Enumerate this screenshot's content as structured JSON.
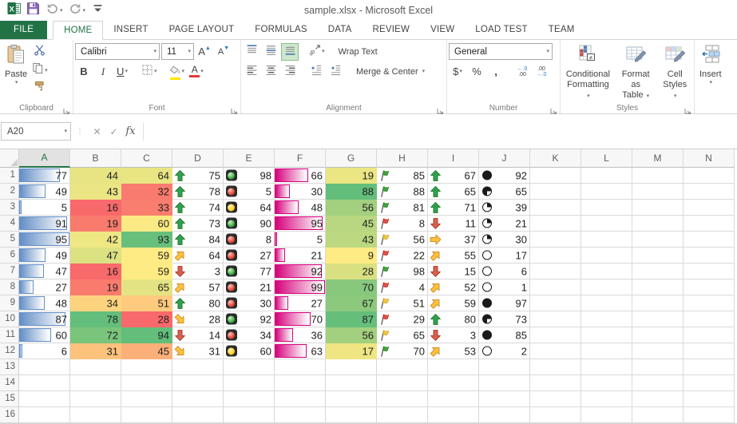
{
  "titlebar": {
    "title": "sample.xlsx - Microsoft Excel"
  },
  "tabs": {
    "file": "FILE",
    "items": [
      {
        "label": "HOME",
        "active": true
      },
      {
        "label": "INSERT"
      },
      {
        "label": "PAGE LAYOUT"
      },
      {
        "label": "FORMULAS"
      },
      {
        "label": "DATA"
      },
      {
        "label": "REVIEW"
      },
      {
        "label": "VIEW"
      },
      {
        "label": "LOAD TEST"
      },
      {
        "label": "TEAM"
      }
    ]
  },
  "ribbon": {
    "clipboard": {
      "label": "Clipboard",
      "paste": "Paste"
    },
    "font": {
      "label": "Font",
      "font_name": "Calibri",
      "font_size": "11"
    },
    "alignment": {
      "label": "Alignment",
      "wrap_text": "Wrap Text",
      "merge_center": "Merge & Center"
    },
    "number": {
      "label": "Number",
      "format": "General"
    },
    "styles": {
      "label": "Styles",
      "conditional_1": "Conditional",
      "conditional_2": "Formatting",
      "format_table_1": "Format as",
      "format_table_2": "Table",
      "cell_styles_1": "Cell",
      "cell_styles_2": "Styles"
    },
    "cells": {
      "insert": "Insert"
    }
  },
  "formula_bar": {
    "name_box": "A20",
    "formula": ""
  },
  "sheet": {
    "columns": [
      "A",
      "B",
      "C",
      "D",
      "E",
      "F",
      "G",
      "H",
      "I",
      "J",
      "K",
      "L",
      "M",
      "N"
    ],
    "selected_column": "A",
    "row_count": 16,
    "bar_colors": {
      "A": "#638EC6",
      "F": "#D6007B"
    },
    "rows": [
      {
        "A": {
          "v": 77,
          "bar": 81
        },
        "B": {
          "v": 44,
          "bg": "#E8E483"
        },
        "C": {
          "v": 64,
          "bg": "#E9E583"
        },
        "D": {
          "v": 75,
          "icon": "arrow-up"
        },
        "E": {
          "v": 98,
          "icon": "light-green"
        },
        "F": {
          "v": 66,
          "bar": 67
        },
        "G": {
          "v": 19,
          "bg": "#EBE583"
        },
        "H": {
          "v": 85,
          "icon": "flag-green"
        },
        "I": {
          "v": 67,
          "icon": "arrow-up"
        },
        "J": {
          "v": 92,
          "icon": "circle-full"
        }
      },
      {
        "A": {
          "v": 49,
          "bar": 52
        },
        "B": {
          "v": 43,
          "bg": "#ECE583"
        },
        "C": {
          "v": 32,
          "bg": "#F97A6E"
        },
        "D": {
          "v": 78,
          "icon": "arrow-up"
        },
        "E": {
          "v": 5,
          "icon": "light-red"
        },
        "F": {
          "v": 30,
          "bar": 30
        },
        "G": {
          "v": 88,
          "bg": "#63BE7B"
        },
        "H": {
          "v": 88,
          "icon": "flag-green"
        },
        "I": {
          "v": 65,
          "icon": "arrow-up"
        },
        "J": {
          "v": 65,
          "icon": "circle-three-quarter"
        }
      },
      {
        "A": {
          "v": 5,
          "bar": 5
        },
        "B": {
          "v": 16,
          "bg": "#F8696B"
        },
        "C": {
          "v": 33,
          "bg": "#F97E6F"
        },
        "D": {
          "v": 74,
          "icon": "arrow-up"
        },
        "E": {
          "v": 64,
          "icon": "light-yellow"
        },
        "F": {
          "v": 48,
          "bar": 48
        },
        "G": {
          "v": 56,
          "bg": "#A2D07F"
        },
        "H": {
          "v": 81,
          "icon": "flag-green"
        },
        "I": {
          "v": 71,
          "icon": "arrow-up"
        },
        "J": {
          "v": 39,
          "icon": "circle-quarter"
        }
      },
      {
        "A": {
          "v": 91,
          "bar": 96
        },
        "B": {
          "v": 19,
          "bg": "#F97B6E"
        },
        "C": {
          "v": 60,
          "bg": "#FBEA84"
        },
        "D": {
          "v": 73,
          "icon": "arrow-up"
        },
        "E": {
          "v": 90,
          "icon": "light-green"
        },
        "F": {
          "v": 95,
          "bar": 96
        },
        "G": {
          "v": 45,
          "bg": "#B8D780"
        },
        "H": {
          "v": 8,
          "icon": "flag-red"
        },
        "I": {
          "v": 11,
          "icon": "arrow-down"
        },
        "J": {
          "v": 21,
          "icon": "circle-quarter"
        }
      },
      {
        "A": {
          "v": 95,
          "bar": 100
        },
        "B": {
          "v": 42,
          "bg": "#EFE783"
        },
        "C": {
          "v": 93,
          "bg": "#68BF7B"
        },
        "D": {
          "v": 84,
          "icon": "arrow-up"
        },
        "E": {
          "v": 8,
          "icon": "light-red"
        },
        "F": {
          "v": 5,
          "bar": 5
        },
        "G": {
          "v": 43,
          "bg": "#BCD880"
        },
        "H": {
          "v": 56,
          "icon": "flag-yellow"
        },
        "I": {
          "v": 37,
          "icon": "arrow-right"
        },
        "J": {
          "v": 30,
          "icon": "circle-quarter"
        }
      },
      {
        "A": {
          "v": 49,
          "bar": 52
        },
        "B": {
          "v": 47,
          "bg": "#DCE182"
        },
        "C": {
          "v": 59,
          "bg": "#FFEB84"
        },
        "D": {
          "v": 64,
          "icon": "arrow-diag-up"
        },
        "E": {
          "v": 27,
          "icon": "light-red"
        },
        "F": {
          "v": 21,
          "bar": 21
        },
        "G": {
          "v": 9,
          "bg": "#FFEB84"
        },
        "H": {
          "v": 22,
          "icon": "flag-red"
        },
        "I": {
          "v": 55,
          "icon": "arrow-diag-up"
        },
        "J": {
          "v": 17,
          "icon": "circle-empty"
        }
      },
      {
        "A": {
          "v": 47,
          "bar": 49
        },
        "B": {
          "v": 16,
          "bg": "#F8696B"
        },
        "C": {
          "v": 59,
          "bg": "#FFEB84"
        },
        "D": {
          "v": 3,
          "icon": "arrow-down"
        },
        "E": {
          "v": 77,
          "icon": "light-green"
        },
        "F": {
          "v": 92,
          "bar": 93
        },
        "G": {
          "v": 28,
          "bg": "#D9E082"
        },
        "H": {
          "v": 98,
          "icon": "flag-green"
        },
        "I": {
          "v": 15,
          "icon": "arrow-down"
        },
        "J": {
          "v": 6,
          "icon": "circle-empty"
        }
      },
      {
        "A": {
          "v": 27,
          "bar": 28
        },
        "B": {
          "v": 19,
          "bg": "#F97B6E"
        },
        "C": {
          "v": 65,
          "bg": "#E4E383"
        },
        "D": {
          "v": 57,
          "icon": "arrow-diag-up"
        },
        "E": {
          "v": 21,
          "icon": "light-red"
        },
        "F": {
          "v": 99,
          "bar": 100
        },
        "G": {
          "v": 70,
          "bg": "#87C87D"
        },
        "H": {
          "v": 4,
          "icon": "flag-red"
        },
        "I": {
          "v": 52,
          "icon": "arrow-diag-up"
        },
        "J": {
          "v": 1,
          "icon": "circle-empty"
        }
      },
      {
        "A": {
          "v": 48,
          "bar": 51
        },
        "B": {
          "v": 34,
          "bg": "#FED37F"
        },
        "C": {
          "v": 51,
          "bg": "#FDCA7E"
        },
        "D": {
          "v": 80,
          "icon": "arrow-up"
        },
        "E": {
          "v": 30,
          "icon": "light-red"
        },
        "F": {
          "v": 27,
          "bar": 27
        },
        "G": {
          "v": 67,
          "bg": "#8CC97D"
        },
        "H": {
          "v": 51,
          "icon": "flag-yellow"
        },
        "I": {
          "v": 59,
          "icon": "arrow-diag-up"
        },
        "J": {
          "v": 97,
          "icon": "circle-full"
        }
      },
      {
        "A": {
          "v": 87,
          "bar": 92
        },
        "B": {
          "v": 78,
          "bg": "#63BE7B"
        },
        "C": {
          "v": 28,
          "bg": "#F8696B"
        },
        "D": {
          "v": 28,
          "icon": "arrow-diag-down"
        },
        "E": {
          "v": 92,
          "icon": "light-green"
        },
        "F": {
          "v": 70,
          "bar": 71
        },
        "G": {
          "v": 87,
          "bg": "#65BF7B"
        },
        "H": {
          "v": 29,
          "icon": "flag-red"
        },
        "I": {
          "v": 80,
          "icon": "arrow-up"
        },
        "J": {
          "v": 73,
          "icon": "circle-three-quarter"
        }
      },
      {
        "A": {
          "v": 60,
          "bar": 63
        },
        "B": {
          "v": 72,
          "bg": "#7AC57C"
        },
        "C": {
          "v": 94,
          "bg": "#63BE7B"
        },
        "D": {
          "v": 14,
          "icon": "arrow-down"
        },
        "E": {
          "v": 34,
          "icon": "light-red"
        },
        "F": {
          "v": 36,
          "bar": 36
        },
        "G": {
          "v": 56,
          "bg": "#A2D07F"
        },
        "H": {
          "v": 65,
          "icon": "flag-yellow"
        },
        "I": {
          "v": 3,
          "icon": "arrow-down"
        },
        "J": {
          "v": 85,
          "icon": "circle-full"
        }
      },
      {
        "A": {
          "v": 6,
          "bar": 6
        },
        "B": {
          "v": 31,
          "bg": "#FDC27C"
        },
        "C": {
          "v": 45,
          "bg": "#FCB079"
        },
        "D": {
          "v": 31,
          "icon": "arrow-diag-down"
        },
        "E": {
          "v": 60,
          "icon": "light-yellow"
        },
        "F": {
          "v": 63,
          "bar": 64
        },
        "G": {
          "v": 17,
          "bg": "#EFE683"
        },
        "H": {
          "v": 70,
          "icon": "flag-green"
        },
        "I": {
          "v": 53,
          "icon": "arrow-diag-up"
        },
        "J": {
          "v": 2,
          "icon": "circle-empty"
        }
      }
    ]
  }
}
